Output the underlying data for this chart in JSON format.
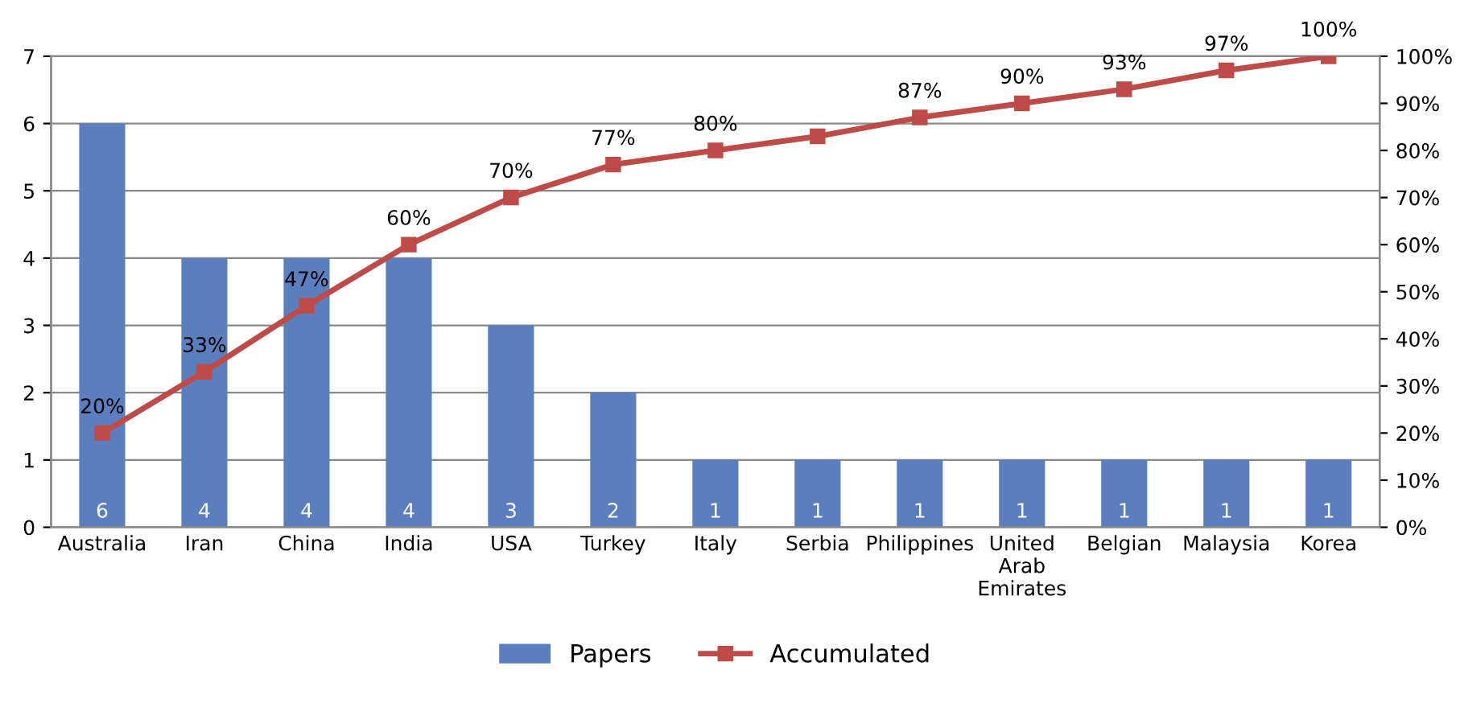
{
  "chart_data": {
    "type": "bar",
    "categories": [
      "Australia",
      "Iran",
      "China",
      "India",
      "USA",
      "Turkey",
      "Italy",
      "Serbia",
      "Philippines",
      "United Arab Emirates",
      "Belgian",
      "Malaysia",
      "Korea"
    ],
    "series": [
      {
        "name": "Papers",
        "color": "#5b7fbe",
        "values": [
          6,
          4,
          4,
          4,
          3,
          2,
          1,
          1,
          1,
          1,
          1,
          1,
          1
        ],
        "value_labels": [
          "6",
          "4",
          "4",
          "4",
          "3",
          "2",
          "1",
          "1",
          "1",
          "1",
          "1",
          "1",
          "1"
        ]
      },
      {
        "name": "Accumulated",
        "type": "line",
        "axis": "y2",
        "color": "#be4b48",
        "marker": "square",
        "line_style": "solid",
        "values": [
          20,
          33,
          47,
          60,
          70,
          77,
          80,
          83,
          87,
          90,
          93,
          97,
          100
        ],
        "value_labels": [
          "20%",
          "33%",
          "47%",
          "60%",
          "70%",
          "77%",
          "80%",
          null,
          "87%",
          "90%",
          "93%",
          "97%",
          "100%"
        ]
      }
    ],
    "ylim": [
      0,
      7
    ],
    "yticks": [
      0,
      1,
      2,
      3,
      4,
      5,
      6,
      7
    ],
    "y2lim": [
      0,
      100
    ],
    "y2ticks": [
      {
        "value": 0,
        "label": "0%"
      },
      {
        "value": 10,
        "label": "10%"
      },
      {
        "value": 20,
        "label": "20%"
      },
      {
        "value": 30,
        "label": "30%"
      },
      {
        "value": 40,
        "label": "40%"
      },
      {
        "value": 50,
        "label": "50%"
      },
      {
        "value": 60,
        "label": "60%"
      },
      {
        "value": 70,
        "label": "70%"
      },
      {
        "value": 80,
        "label": "80%"
      },
      {
        "value": 90,
        "label": "90%"
      },
      {
        "value": 100,
        "label": "100%"
      }
    ],
    "grid": "y",
    "legend": "bottom"
  }
}
